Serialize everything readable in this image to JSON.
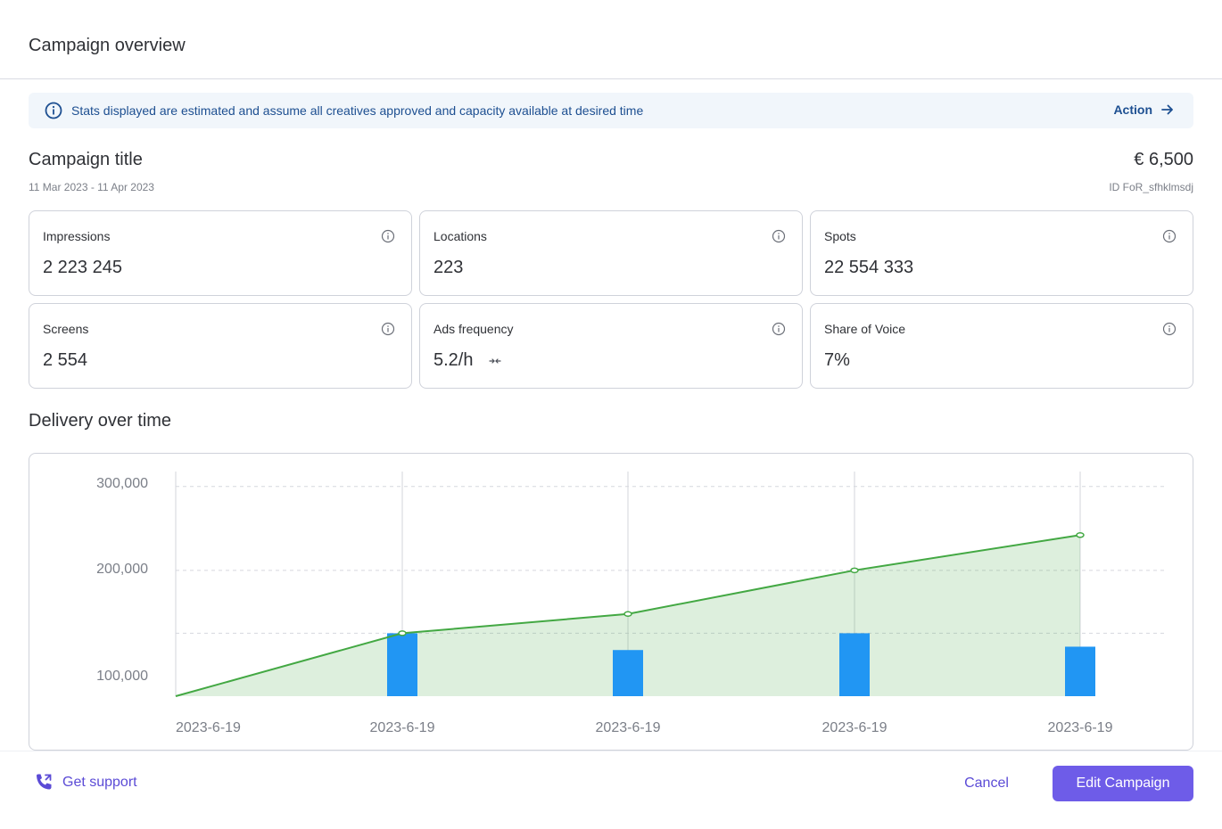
{
  "header": {
    "title": "Campaign overview"
  },
  "banner": {
    "icon": "info-icon",
    "text": "Stats displayed are estimated and assume all creatives approved and capacity available at desired time",
    "action_label": "Action",
    "action_icon": "arrow-right-icon",
    "color": "#1d4f91"
  },
  "campaign": {
    "title": "Campaign title",
    "dates": "11 Mar 2023 - 11 Apr 2023",
    "price": "€ 6,500",
    "id": "ID FoR_sfhklmsdj"
  },
  "stats": [
    {
      "label": "Impressions",
      "value": "2 223 245"
    },
    {
      "label": "Locations",
      "value": "223"
    },
    {
      "label": "Spots",
      "value": "22 554 333"
    },
    {
      "label": "Screens",
      "value": "2 554"
    },
    {
      "label": "Ads frequency",
      "value": "5.2/h"
    },
    {
      "label": "Share of Voice",
      "value": "7%"
    }
  ],
  "delivery": {
    "title": "Delivery over time"
  },
  "chart_data": {
    "type": "bar",
    "categories": [
      "2023-6-19",
      "2023-6-19",
      "2023-6-19",
      "2023-6-19",
      "2023-6-19"
    ],
    "y_ticks": [
      "300,000",
      "200,000",
      "100,000"
    ],
    "ylim": [
      50000,
      305000
    ],
    "series": [
      {
        "type": "area",
        "color": "#43a843",
        "values": [
          50000,
          125000,
          148000,
          200000,
          242000
        ]
      },
      {
        "type": "bar",
        "color": "#2196f3",
        "values": [
          null,
          125000,
          105000,
          125000,
          109000
        ]
      }
    ],
    "grid": true,
    "grid_values": [
      300000,
      200000,
      125000
    ]
  },
  "footer": {
    "support_label": "Get support",
    "support_icon": "phone-transfer-icon",
    "cancel_label": "Cancel",
    "edit_label": "Edit Campaign",
    "accent": "#6e5ce8"
  }
}
